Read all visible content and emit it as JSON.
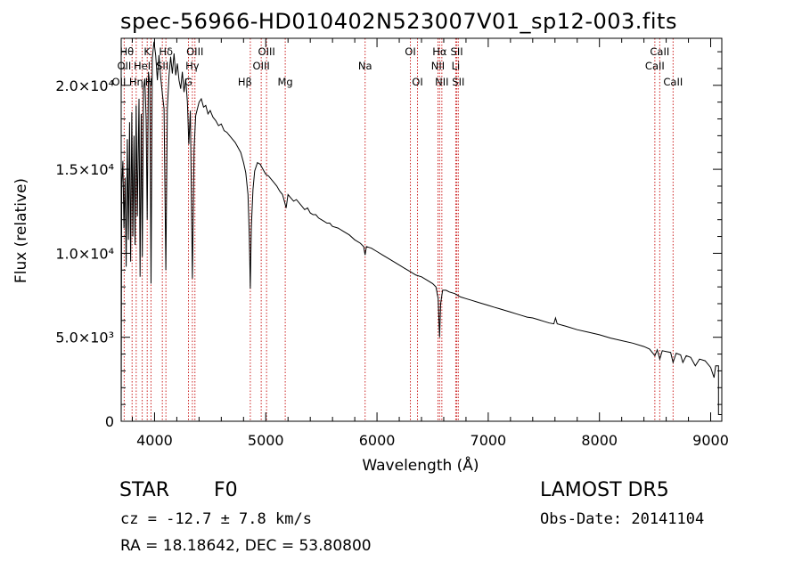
{
  "title": "spec-56966-HD010402N523007V01_sp12-003.fits",
  "footer": {
    "spectral_type": "STAR",
    "subclass": "F0",
    "survey": "LAMOST DR5",
    "redshift": "cz = -12.7 ± 7.8 km/s",
    "obs_date": "Obs-Date: 20141104",
    "coords": "RA =  18.18642, DEC =  53.80800"
  },
  "colors": {
    "spectrum": "#000000",
    "line_marker": "#cc2222",
    "axes": "#000000"
  },
  "chart_data": {
    "type": "line",
    "title": "spec-56966-HD010402N523007V01_sp12-003.fits",
    "xlabel": "Wavelength (Å)",
    "ylabel": "Flux (relative)",
    "xlim": [
      3700,
      9100
    ],
    "ylim": [
      0,
      22800
    ],
    "grid": false,
    "x_ticks": [
      4000,
      5000,
      6000,
      7000,
      8000,
      9000
    ],
    "y_ticks": [
      {
        "value": 0,
        "label": "0"
      },
      {
        "value": 5000,
        "label": "5.0×10³"
      },
      {
        "value": 10000,
        "label": "1.0×10⁴"
      },
      {
        "value": 15000,
        "label": "1.5×10⁴"
      },
      {
        "value": 20000,
        "label": "2.0×10⁴"
      }
    ],
    "series": [
      {
        "points": [
          [
            3700,
            300
          ],
          [
            3705,
            14000
          ],
          [
            3715,
            15500
          ],
          [
            3725,
            11500
          ],
          [
            3735,
            14500
          ],
          [
            3745,
            9200
          ],
          [
            3755,
            16800
          ],
          [
            3765,
            10800
          ],
          [
            3775,
            17800
          ],
          [
            3785,
            9500
          ],
          [
            3795,
            18400
          ],
          [
            3805,
            11000
          ],
          [
            3815,
            17000
          ],
          [
            3825,
            10500
          ],
          [
            3835,
            18800
          ],
          [
            3845,
            12200
          ],
          [
            3860,
            19200
          ],
          [
            3870,
            8600
          ],
          [
            3880,
            18300
          ],
          [
            3890,
            9800
          ],
          [
            3900,
            19800
          ],
          [
            3912,
            20400
          ],
          [
            3924,
            18000
          ],
          [
            3934,
            12000
          ],
          [
            3945,
            20800
          ],
          [
            3958,
            20000
          ],
          [
            3968,
            8200
          ],
          [
            3980,
            21600
          ],
          [
            3995,
            22600
          ],
          [
            4010,
            21800
          ],
          [
            4025,
            20300
          ],
          [
            4040,
            21800
          ],
          [
            4055,
            20500
          ],
          [
            4070,
            19500
          ],
          [
            4085,
            18600
          ],
          [
            4101,
            9000
          ],
          [
            4115,
            18600
          ],
          [
            4130,
            20600
          ],
          [
            4145,
            21700
          ],
          [
            4160,
            20700
          ],
          [
            4175,
            21900
          ],
          [
            4190,
            20600
          ],
          [
            4205,
            21300
          ],
          [
            4220,
            20300
          ],
          [
            4235,
            19800
          ],
          [
            4250,
            20800
          ],
          [
            4265,
            19600
          ],
          [
            4280,
            20400
          ],
          [
            4295,
            19000
          ],
          [
            4308,
            16500
          ],
          [
            4322,
            18500
          ],
          [
            4340,
            8500
          ],
          [
            4355,
            16200
          ],
          [
            4370,
            18200
          ],
          [
            4385,
            18600
          ],
          [
            4400,
            19000
          ],
          [
            4420,
            19200
          ],
          [
            4440,
            18700
          ],
          [
            4460,
            18800
          ],
          [
            4480,
            18300
          ],
          [
            4500,
            18500
          ],
          [
            4525,
            18100
          ],
          [
            4550,
            17900
          ],
          [
            4575,
            17600
          ],
          [
            4600,
            17700
          ],
          [
            4625,
            17300
          ],
          [
            4650,
            17200
          ],
          [
            4675,
            17000
          ],
          [
            4700,
            16800
          ],
          [
            4725,
            16600
          ],
          [
            4750,
            16300
          ],
          [
            4775,
            16000
          ],
          [
            4800,
            15400
          ],
          [
            4820,
            14800
          ],
          [
            4840,
            13500
          ],
          [
            4852,
            11000
          ],
          [
            4861,
            7900
          ],
          [
            4870,
            11500
          ],
          [
            4885,
            13800
          ],
          [
            4900,
            14900
          ],
          [
            4925,
            15400
          ],
          [
            4950,
            15300
          ],
          [
            4975,
            15000
          ],
          [
            5000,
            14700
          ],
          [
            5025,
            14600
          ],
          [
            5050,
            14400
          ],
          [
            5075,
            14200
          ],
          [
            5100,
            14000
          ],
          [
            5125,
            13700
          ],
          [
            5150,
            13500
          ],
          [
            5167,
            13100
          ],
          [
            5183,
            12700
          ],
          [
            5200,
            13500
          ],
          [
            5225,
            13300
          ],
          [
            5250,
            13100
          ],
          [
            5275,
            13200
          ],
          [
            5300,
            13000
          ],
          [
            5325,
            12800
          ],
          [
            5350,
            12600
          ],
          [
            5375,
            12700
          ],
          [
            5400,
            12400
          ],
          [
            5425,
            12300
          ],
          [
            5450,
            12300
          ],
          [
            5475,
            12100
          ],
          [
            5500,
            12000
          ],
          [
            5525,
            11900
          ],
          [
            5550,
            11800
          ],
          [
            5575,
            11800
          ],
          [
            5600,
            11600
          ],
          [
            5650,
            11500
          ],
          [
            5700,
            11300
          ],
          [
            5750,
            11100
          ],
          [
            5800,
            10800
          ],
          [
            5850,
            10600
          ],
          [
            5880,
            10400
          ],
          [
            5893,
            9900
          ],
          [
            5905,
            10400
          ],
          [
            5950,
            10300
          ],
          [
            6000,
            10100
          ],
          [
            6050,
            9900
          ],
          [
            6100,
            9700
          ],
          [
            6150,
            9500
          ],
          [
            6200,
            9300
          ],
          [
            6250,
            9100
          ],
          [
            6300,
            8900
          ],
          [
            6350,
            8700
          ],
          [
            6400,
            8600
          ],
          [
            6450,
            8400
          ],
          [
            6500,
            8200
          ],
          [
            6530,
            8000
          ],
          [
            6550,
            7300
          ],
          [
            6563,
            5000
          ],
          [
            6572,
            7000
          ],
          [
            6590,
            7800
          ],
          [
            6620,
            7800
          ],
          [
            6650,
            7700
          ],
          [
            6700,
            7600
          ],
          [
            6750,
            7400
          ],
          [
            6800,
            7300
          ],
          [
            6850,
            7200
          ],
          [
            6900,
            7100
          ],
          [
            6950,
            7000
          ],
          [
            7000,
            6900
          ],
          [
            7050,
            6800
          ],
          [
            7100,
            6700
          ],
          [
            7150,
            6600
          ],
          [
            7200,
            6500
          ],
          [
            7250,
            6400
          ],
          [
            7300,
            6300
          ],
          [
            7350,
            6200
          ],
          [
            7400,
            6150
          ],
          [
            7450,
            6050
          ],
          [
            7500,
            5950
          ],
          [
            7550,
            5850
          ],
          [
            7590,
            5800
          ],
          [
            7605,
            6150
          ],
          [
            7620,
            5800
          ],
          [
            7700,
            5650
          ],
          [
            7800,
            5450
          ],
          [
            7900,
            5300
          ],
          [
            8000,
            5150
          ],
          [
            8100,
            4950
          ],
          [
            8200,
            4800
          ],
          [
            8300,
            4650
          ],
          [
            8400,
            4450
          ],
          [
            8450,
            4300
          ],
          [
            8498,
            3900
          ],
          [
            8520,
            4250
          ],
          [
            8542,
            3700
          ],
          [
            8565,
            4200
          ],
          [
            8600,
            4150
          ],
          [
            8640,
            4100
          ],
          [
            8662,
            3500
          ],
          [
            8690,
            4050
          ],
          [
            8730,
            3950
          ],
          [
            8750,
            3500
          ],
          [
            8780,
            3900
          ],
          [
            8820,
            3800
          ],
          [
            8862,
            3300
          ],
          [
            8900,
            3700
          ],
          [
            8950,
            3600
          ],
          [
            9000,
            3200
          ],
          [
            9030,
            2600
          ],
          [
            9045,
            3300
          ],
          [
            9070,
            3300
          ],
          [
            9070,
            400
          ],
          [
            9100,
            400
          ]
        ]
      }
    ],
    "spectral_lines": [
      {
        "label": "Hθ",
        "x": 3798,
        "row": 1,
        "anchor": "end"
      },
      {
        "label": "K",
        "x": 3934,
        "row": 1,
        "anchor": "middle"
      },
      {
        "label": "Hδ",
        "x": 4102,
        "row": 1,
        "anchor": "middle"
      },
      {
        "label": "OIII",
        "x": 4363,
        "row": 1,
        "anchor": "middle"
      },
      {
        "label": "OIII",
        "x": 5007,
        "row": 1,
        "anchor": "middle"
      },
      {
        "label": "OI",
        "x": 6300,
        "row": 1,
        "anchor": "middle"
      },
      {
        "label": "Hα",
        "x": 6563,
        "row": 1,
        "anchor": "middle"
      },
      {
        "label": "SII",
        "x": 6717,
        "row": 1,
        "anchor": "middle"
      },
      {
        "label": "CaII",
        "x": 8542,
        "row": 1,
        "anchor": "middle"
      },
      {
        "label": "OII",
        "x": 3727,
        "row": 2,
        "anchor": "middle"
      },
      {
        "label": "HeI",
        "x": 3889,
        "row": 2,
        "anchor": "middle"
      },
      {
        "label": "SII",
        "x": 4070,
        "row": 2,
        "anchor": "middle"
      },
      {
        "label": "Hγ",
        "x": 4340,
        "row": 2,
        "anchor": "middle"
      },
      {
        "label": "OIII",
        "x": 4959,
        "row": 2,
        "anchor": "middle"
      },
      {
        "label": "Na",
        "x": 5893,
        "row": 2,
        "anchor": "middle"
      },
      {
        "label": "NII",
        "x": 6548,
        "row": 2,
        "anchor": "middle"
      },
      {
        "label": "Li",
        "x": 6708,
        "row": 2,
        "anchor": "middle"
      },
      {
        "label": "CaII",
        "x": 8498,
        "row": 2,
        "anchor": "middle"
      },
      {
        "label": "OII",
        "x": 3727,
        "row": 3,
        "anchor": "end"
      },
      {
        "label": "Hη",
        "x": 3835,
        "row": 3,
        "anchor": "middle"
      },
      {
        "label": "H",
        "x": 3968,
        "row": 3,
        "anchor": "end"
      },
      {
        "label": "G",
        "x": 4305,
        "row": 3,
        "anchor": "middle"
      },
      {
        "label": "Hβ",
        "x": 4861,
        "row": 3,
        "anchor": "end"
      },
      {
        "label": "Mg",
        "x": 5175,
        "row": 3,
        "anchor": "middle"
      },
      {
        "label": "OI",
        "x": 6364,
        "row": 3,
        "anchor": "middle"
      },
      {
        "label": "NII",
        "x": 6583,
        "row": 3,
        "anchor": "middle"
      },
      {
        "label": "SII",
        "x": 6731,
        "row": 3,
        "anchor": "middle"
      },
      {
        "label": "CaII",
        "x": 8662,
        "row": 3,
        "anchor": "middle"
      }
    ]
  }
}
